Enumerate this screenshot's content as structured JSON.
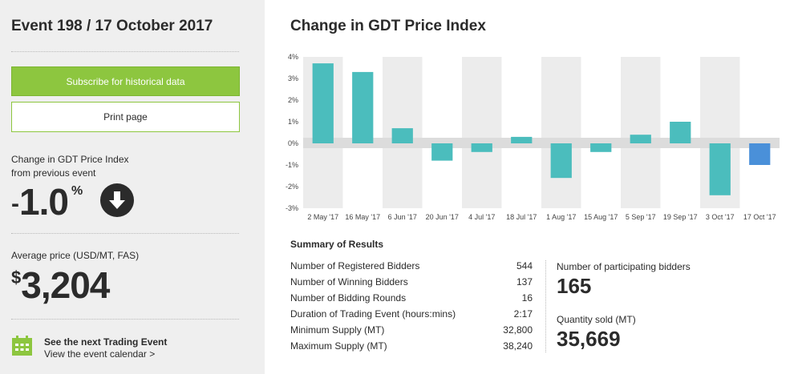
{
  "sidebar": {
    "event_title": "Event 198 / 17 October 2017",
    "subscribe_label": "Subscribe for historical data",
    "print_label": "Print page",
    "change_label_line1": "Change in GDT Price Index",
    "change_label_line2": "from previous event",
    "change_sign": "-",
    "change_value": "1.0",
    "change_unit": "%",
    "avg_label": "Average price (USD/MT, FAS)",
    "avg_currency": "$",
    "avg_value": "3,204",
    "next_title": "See the next Trading Event",
    "next_link": "View the event calendar >"
  },
  "main": {
    "chart_title": "Change in GDT Price Index",
    "summary_title": "Summary of Results",
    "summary_rows": [
      {
        "label": "Number of Registered Bidders",
        "value": "544"
      },
      {
        "label": "Number of Winning Bidders",
        "value": "137"
      },
      {
        "label": "Number of Bidding Rounds",
        "value": "16"
      },
      {
        "label": "Duration of Trading Event (hours:mins)",
        "value": "2:17"
      },
      {
        "label": "Minimum Supply (MT)",
        "value": "32,800"
      },
      {
        "label": "Maximum Supply (MT)",
        "value": "38,240"
      }
    ],
    "participating_label": "Number of participating bidders",
    "participating_value": "165",
    "quantity_label": "Quantity sold (MT)",
    "quantity_value": "35,669"
  },
  "colors": {
    "accent_green": "#8dc63f",
    "bar_teal": "#4bbdbd",
    "bar_current": "#4a90d9",
    "sidebar_bg": "#efefef"
  },
  "icons": {
    "change_direction": "arrow-down-circle-icon",
    "calendar": "calendar-icon"
  },
  "chart_data": {
    "type": "bar",
    "title": "Change in GDT Price Index",
    "categories": [
      "2 May '17",
      "16 May '17",
      "6 Jun '17",
      "20 Jun '17",
      "4 Jul '17",
      "18 Jul '17",
      "1 Aug '17",
      "15 Aug '17",
      "5 Sep '17",
      "19 Sep '17",
      "3 Oct '17",
      "17 Oct '17"
    ],
    "values": [
      3.7,
      3.3,
      0.7,
      -0.8,
      -0.4,
      0.3,
      -1.6,
      -0.4,
      0.4,
      1.0,
      -2.4,
      -1.0
    ],
    "ytick_labels": [
      "4%",
      "3%",
      "2%",
      "1%",
      "0%",
      "-1%",
      "-2%",
      "-3%"
    ],
    "ylim": [
      -3,
      4
    ],
    "grid": "alternating column bands",
    "highlight_last": true
  }
}
